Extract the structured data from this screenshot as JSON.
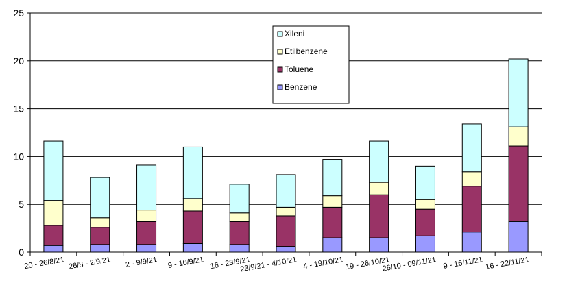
{
  "chart_data": {
    "type": "bar",
    "stacked": true,
    "categories": [
      "20 - 26/8/21",
      "26/8 - 2/9/21",
      "2 - 9/9/21",
      "9 - 16/9/21",
      "16 - 23/9/21",
      "23/9/21 - 4/10/21",
      "4 - 19/10/21",
      "19 - 26/10/21",
      "26/10 - 09/11/21",
      "9 - 16/11/21",
      "16 - 22/11/21"
    ],
    "series": [
      {
        "name": "Benzene",
        "color": "#9999ff",
        "values": [
          0.7,
          0.8,
          0.8,
          0.9,
          0.8,
          0.6,
          1.5,
          1.5,
          1.7,
          2.1,
          3.2
        ]
      },
      {
        "name": "Toluene",
        "color": "#993366",
        "values": [
          2.1,
          1.8,
          2.4,
          3.4,
          2.4,
          3.2,
          3.2,
          4.5,
          2.8,
          4.8,
          7.9
        ]
      },
      {
        "name": "Etilbenzene",
        "color": "#ffffcc",
        "values": [
          2.6,
          1.0,
          1.2,
          1.3,
          0.9,
          0.9,
          1.2,
          1.3,
          1.0,
          1.5,
          2.0
        ]
      },
      {
        "name": "Xileni",
        "color": "#ccffff",
        "values": [
          6.2,
          4.2,
          4.7,
          5.4,
          3.0,
          3.4,
          3.8,
          4.3,
          3.5,
          5.0,
          7.1
        ]
      }
    ],
    "legend_order": [
      "Xileni",
      "Etilbenzene",
      "Toluene",
      "Benzene"
    ],
    "ylim": [
      0,
      25
    ],
    "yticks": [
      "0",
      "5",
      "10",
      "15",
      "20",
      "25"
    ],
    "title": "",
    "xlabel": "",
    "ylabel": "",
    "grid": "horizontal",
    "legend_position": "top-center"
  }
}
